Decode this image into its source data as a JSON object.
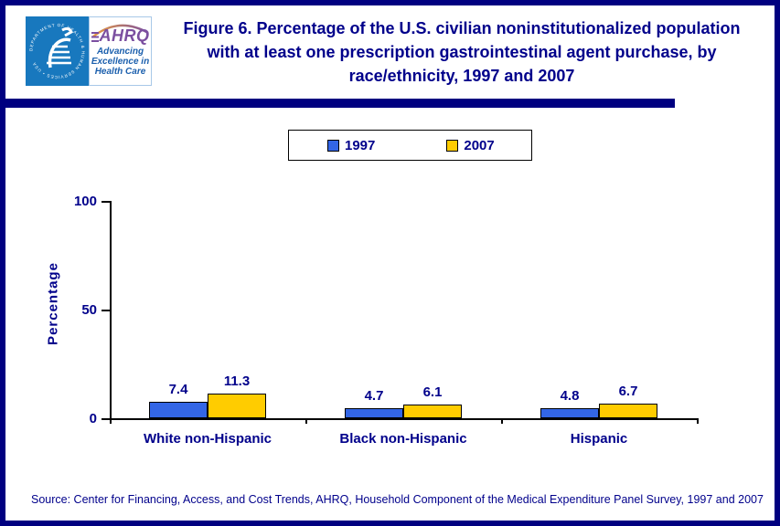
{
  "header": {
    "title": "Figure 6. Percentage of the U.S. civilian noninstitutionalized population with at least one prescription gastrointestinal agent purchase, by race/ethnicity, 1997 and 2007"
  },
  "logo": {
    "acronym": "AHRQ",
    "tagline_lines": [
      "Advancing",
      "Excellence in",
      "Health Care"
    ],
    "seal_text": "DEPARTMENT OF HEALTH & HUMAN SERVICES • USA"
  },
  "chart_data": {
    "type": "bar",
    "categories": [
      "White non-Hispanic",
      "Black non-Hispanic",
      "Hispanic"
    ],
    "series": [
      {
        "name": "1997",
        "color": "#3366E6",
        "values": [
          7.4,
          4.7,
          4.8
        ]
      },
      {
        "name": "2007",
        "color": "#FFCC00",
        "values": [
          11.3,
          6.1,
          6.7
        ]
      }
    ],
    "ylabel": "Percentage",
    "yticks": [
      0,
      50,
      100
    ],
    "ylim": [
      0,
      100
    ],
    "grid": false,
    "legend_position": "top-center"
  },
  "footer": {
    "source": "Source: Center for Financing, Access, and Cost Trends, AHRQ, Household Component of the Medical Expenditure Panel Survey, 1997 and 2007"
  },
  "colors": {
    "frame_navy": "#000080",
    "text_navy": "#00008B",
    "bar_1997_blue": "#3366E6",
    "bar_2007_gold": "#FFCC00",
    "hhs_seal_blue": "#1878BE",
    "ahrq_purple": "#7B4FA0",
    "ahrq_tagline_blue": "#1B5FAD"
  }
}
